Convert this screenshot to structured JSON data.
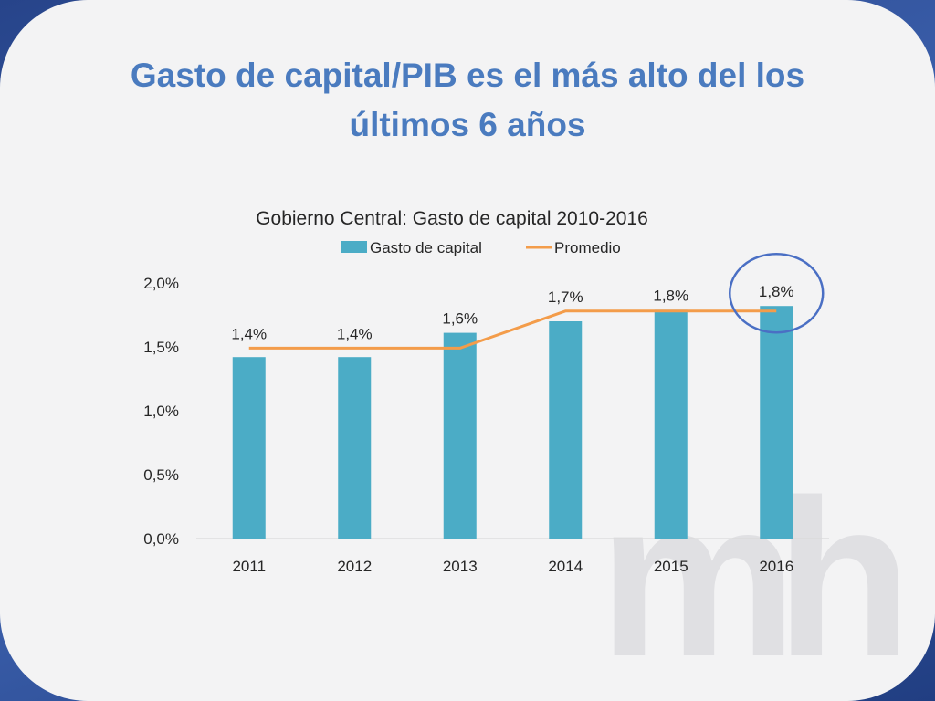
{
  "slide": {
    "title_line1": "Gasto de capital/PIB es el más alto del los",
    "title_line2": "últimos 6 años"
  },
  "watermark": {
    "text": "mh"
  },
  "colors": {
    "title": "#4a7bbf",
    "bar": "#4bacc6",
    "line": "#f39c4a",
    "highlight_circle": "#4a6fc4",
    "frame": "#2f4c8c"
  },
  "chart_data": {
    "type": "bar",
    "title": "Gobierno Central: Gasto de capital 2010-2016",
    "categories": [
      "2011",
      "2012",
      "2013",
      "2014",
      "2015",
      "2016"
    ],
    "series": [
      {
        "name": "Gasto de capital",
        "type": "bar",
        "values": [
          1.42,
          1.42,
          1.61,
          1.7,
          1.79,
          1.82
        ]
      },
      {
        "name": "Promedio",
        "type": "line",
        "values": [
          1.49,
          1.49,
          1.49,
          1.78,
          1.78,
          1.78
        ]
      }
    ],
    "data_labels": [
      "1,4%",
      "1,4%",
      "1,6%",
      "1,7%",
      "1,8%",
      "1,8%"
    ],
    "y_ticks": [
      0.0,
      0.5,
      1.0,
      1.5,
      2.0
    ],
    "y_tick_labels": [
      "0,0%",
      "0,5%",
      "1,0%",
      "1,5%",
      "2,0%"
    ],
    "ylim": [
      0,
      2.0
    ],
    "legend_position": "top-center",
    "grid": false,
    "highlighted_category": "2016"
  }
}
